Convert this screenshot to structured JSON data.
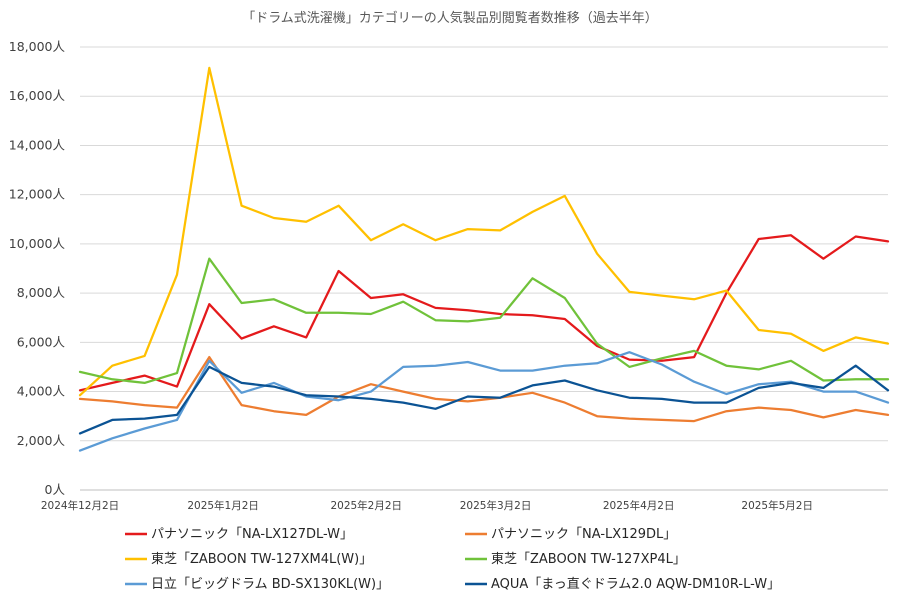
{
  "chart_data": {
    "type": "line",
    "title": "「ドラム式洗濯機」カテゴリーの人気製品別閲覧者数推移（過去半年）",
    "xlabel": "",
    "ylabel": "",
    "ylim": [
      0,
      18000
    ],
    "yticks": [
      0,
      2000,
      4000,
      6000,
      8000,
      10000,
      12000,
      14000,
      16000,
      18000
    ],
    "ytick_labels": [
      "0人",
      "2,000人",
      "4,000人",
      "6,000人",
      "8,000人",
      "10,000人",
      "12,000人",
      "14,000人",
      "16,000人",
      "18,000人"
    ],
    "x_dates": [
      "2024-12-02",
      "2024-12-09",
      "2024-12-16",
      "2024-12-23",
      "2024-12-30",
      "2025-01-06",
      "2025-01-13",
      "2025-01-20",
      "2025-01-27",
      "2025-02-03",
      "2025-02-10",
      "2025-02-17",
      "2025-02-24",
      "2025-03-03",
      "2025-03-10",
      "2025-03-17",
      "2025-03-24",
      "2025-03-31",
      "2025-04-07",
      "2025-04-14",
      "2025-04-21",
      "2025-04-28",
      "2025-05-05",
      "2025-05-12",
      "2025-05-19",
      "2025-05-26"
    ],
    "xtick_labels": [
      {
        "date": "2024-12-02",
        "label": "2024年12月2日"
      },
      {
        "date": "2025-01-02",
        "label": "2025年1月2日"
      },
      {
        "date": "2025-02-02",
        "label": "2025年2月2日"
      },
      {
        "date": "2025-03-02",
        "label": "2025年3月2日"
      },
      {
        "date": "2025-04-02",
        "label": "2025年4月2日"
      },
      {
        "date": "2025-05-02",
        "label": "2025年5月2日"
      }
    ],
    "grid": true,
    "legend_position": "bottom",
    "series": [
      {
        "name": "パナソニック「NA-LX127DL-W」",
        "color": "#e41a1c",
        "values": [
          4050,
          4350,
          4650,
          4200,
          7550,
          6150,
          6650,
          6200,
          8900,
          7800,
          7950,
          7400,
          7300,
          7150,
          7100,
          6950,
          5850,
          5300,
          5250,
          5400,
          8000,
          10200,
          10350,
          9400,
          10300,
          10100
        ]
      },
      {
        "name": "パナソニック「NA-LX129DL」",
        "color": "#ed7d31",
        "values": [
          3700,
          3600,
          3450,
          3350,
          5400,
          3450,
          3200,
          3050,
          3800,
          4300,
          4000,
          3700,
          3600,
          3750,
          3950,
          3550,
          3000,
          2900,
          2850,
          2800,
          3200,
          3350,
          3250,
          2950,
          3250,
          3050
        ]
      },
      {
        "name": "東芝「ZABOON TW-127XM4L(W)」",
        "color": "#ffc000",
        "values": [
          3850,
          5050,
          5450,
          8750,
          17150,
          11550,
          11050,
          10900,
          11550,
          10150,
          10800,
          10150,
          10600,
          10550,
          11300,
          11950,
          9600,
          8050,
          7900,
          7750,
          8100,
          6500,
          6350,
          5650,
          6200,
          5950
        ]
      },
      {
        "name": "東芝「ZABOON TW-127XP4L」",
        "color": "#70c23a",
        "values": [
          4800,
          4500,
          4350,
          4750,
          9400,
          7600,
          7750,
          7200,
          7200,
          7150,
          7650,
          6900,
          6850,
          7000,
          8600,
          7800,
          5950,
          5000,
          5350,
          5650,
          5050,
          4900,
          5250,
          4450,
          4500,
          4500
        ]
      },
      {
        "name": "日立「ビッグドラム BD-SX130KL(W)」",
        "color": "#5b9bd5",
        "values": [
          1600,
          2100,
          2500,
          2850,
          5250,
          3950,
          4350,
          3800,
          3650,
          4000,
          5000,
          5050,
          5200,
          4850,
          4850,
          5050,
          5150,
          5600,
          5100,
          4400,
          3900,
          4300,
          4400,
          4000,
          4000,
          3550
        ]
      },
      {
        "name": "AQUA「まっ直ぐドラム2.0 AQW-DM10R-L-W」",
        "color": "#0b5394",
        "values": [
          2300,
          2850,
          2900,
          3050,
          5000,
          4350,
          4200,
          3850,
          3800,
          3700,
          3550,
          3300,
          3800,
          3750,
          4250,
          4450,
          4050,
          3750,
          3700,
          3550,
          3550,
          4150,
          4350,
          4150,
          5050,
          4050
        ]
      }
    ]
  }
}
